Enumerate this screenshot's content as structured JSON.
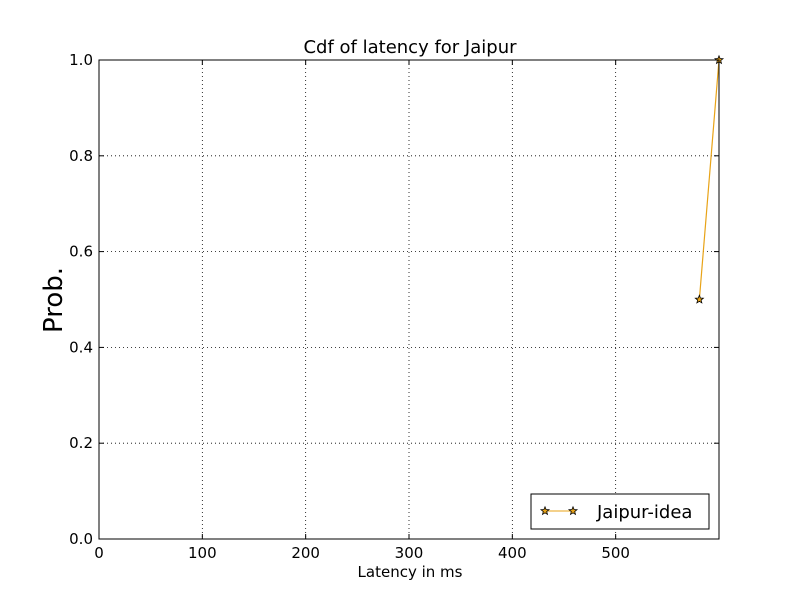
{
  "chart_data": {
    "type": "line",
    "title": "Cdf of latency for Jaipur",
    "xlabel": "Latency in ms",
    "ylabel": "Prob.",
    "xlim": [
      0,
      600
    ],
    "ylim": [
      0.0,
      1.0
    ],
    "xticks": [
      0,
      100,
      200,
      300,
      400,
      500
    ],
    "yticks": [
      0.0,
      0.2,
      0.4,
      0.6,
      0.8,
      1.0
    ],
    "xtick_labels": [
      "0",
      "100",
      "200",
      "300",
      "400",
      "500"
    ],
    "ytick_labels": [
      "0.0",
      "0.2",
      "0.4",
      "0.6",
      "0.8",
      "1.0"
    ],
    "grid": true,
    "legend_position": "lower-right",
    "series": [
      {
        "name": "Jaipur-idea",
        "color": "#e8a317",
        "marker": "star",
        "x": [
          581,
          600
        ],
        "y": [
          0.5,
          1.0
        ]
      }
    ]
  }
}
